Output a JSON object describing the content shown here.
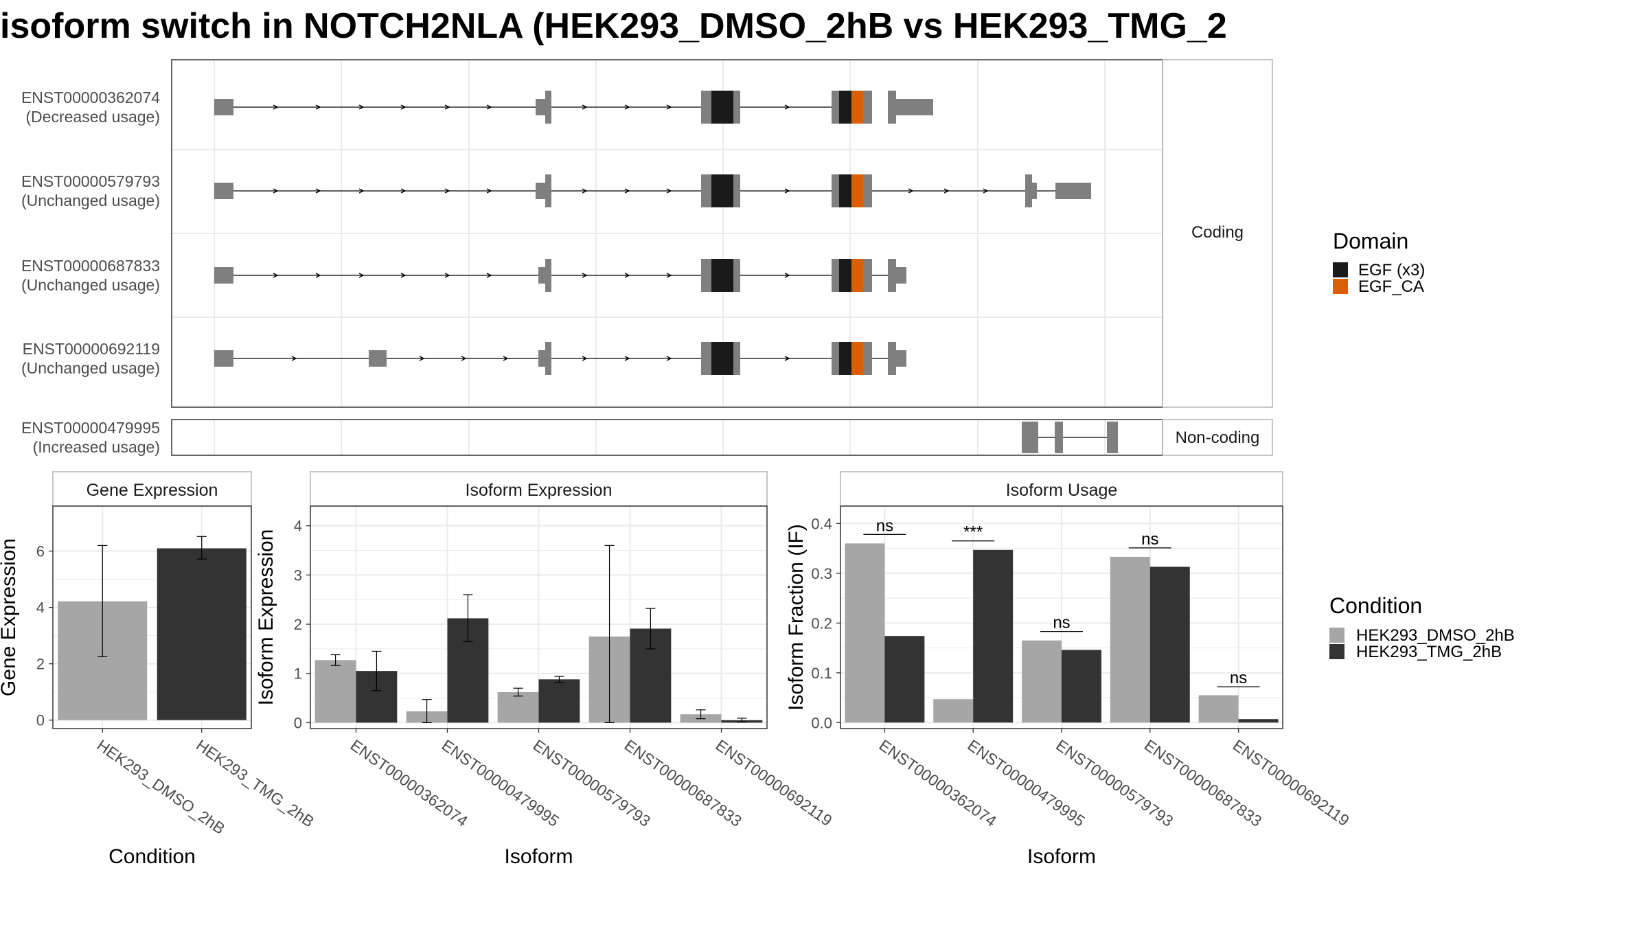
{
  "title": "isoform switch in NOTCH2NLA (HEK293_DMSO_2hB vs HEK293_TMG_2",
  "colors": {
    "exon": "#7f7f7f",
    "egf": "#1a1a1a",
    "egf_ca": "#d95f02",
    "dmso": "#a6a6a6",
    "tmg": "#333333",
    "grid": "#ebebeb",
    "frame": "#333333",
    "strip_border": "#b3b3b3"
  },
  "structure": {
    "facets": {
      "coding": "Coding",
      "noncoding": "Non-coding"
    },
    "isoforms": [
      {
        "id": "ENST00000362074",
        "usage": "(Decreased usage)",
        "coding": true
      },
      {
        "id": "ENST00000579793",
        "usage": "(Unchanged usage)",
        "coding": true
      },
      {
        "id": "ENST00000687833",
        "usage": "(Unchanged usage)",
        "coding": true
      },
      {
        "id": "ENST00000692119",
        "usage": "(Unchanged usage)",
        "coding": true
      },
      {
        "id": "ENST00000479995",
        "usage": "(Increased usage)",
        "coding": false
      }
    ],
    "legend": {
      "title": "Domain",
      "items": [
        {
          "label": "EGF (x3)",
          "color": "#1a1a1a"
        },
        {
          "label": "EGF_CA",
          "color": "#d95f02"
        }
      ]
    }
  },
  "chart_data": [
    {
      "type": "bar",
      "title": "Gene Expression",
      "xlabel": "Condition",
      "ylabel": "Gene Expression",
      "ylim": [
        -0.3,
        7.6
      ],
      "yticks": [
        0,
        2,
        4,
        6
      ],
      "categories": [
        "HEK293_DMSO_2hB",
        "HEK293_TMG_2hB"
      ],
      "values": [
        4.22,
        6.1
      ],
      "errors": [
        [
          2.25,
          6.2
        ],
        [
          5.72,
          6.52
        ]
      ]
    },
    {
      "type": "bar",
      "title": "Isoform Expression",
      "xlabel": "Isoform",
      "ylabel": "Isoform Expression",
      "ylim": [
        -0.12,
        4.4
      ],
      "yticks": [
        0,
        1,
        2,
        3,
        4
      ],
      "categories": [
        "ENST00000362074",
        "ENST00000479995",
        "ENST00000579793",
        "ENST00000687833",
        "ENST00000692119"
      ],
      "series": [
        {
          "name": "HEK293_DMSO_2hB",
          "values": [
            1.27,
            0.23,
            0.62,
            1.75,
            0.17
          ],
          "errors": [
            [
              1.16,
              1.38
            ],
            [
              0.0,
              0.47
            ],
            [
              0.54,
              0.7
            ],
            [
              0.0,
              3.6
            ],
            [
              0.08,
              0.26
            ]
          ]
        },
        {
          "name": "HEK293_TMG_2hB",
          "values": [
            1.05,
            2.12,
            0.88,
            1.91,
            0.05
          ],
          "errors": [
            [
              0.65,
              1.45
            ],
            [
              1.65,
              2.6
            ],
            [
              0.82,
              0.94
            ],
            [
              1.5,
              2.32
            ],
            [
              0.01,
              0.09
            ]
          ]
        }
      ]
    },
    {
      "type": "bar",
      "title": "Isoform Usage",
      "xlabel": "Isoform",
      "ylabel": "Isoform Fraction (IF)",
      "ylim": [
        -0.012,
        0.435
      ],
      "yticks": [
        0.0,
        0.1,
        0.2,
        0.3,
        0.4
      ],
      "categories": [
        "ENST00000362074",
        "ENST00000479995",
        "ENST00000579793",
        "ENST00000687833",
        "ENST00000692119"
      ],
      "series": [
        {
          "name": "HEK293_DMSO_2hB",
          "values": [
            0.36,
            0.047,
            0.165,
            0.333,
            0.055
          ]
        },
        {
          "name": "HEK293_TMG_2hB",
          "values": [
            0.174,
            0.347,
            0.146,
            0.313,
            0.007
          ]
        }
      ],
      "annotations": [
        "ns",
        "***",
        "ns",
        "ns",
        "ns"
      ],
      "annotation_y": [
        0.378,
        0.365,
        0.183,
        0.351,
        0.072
      ]
    }
  ],
  "condition_legend": {
    "title": "Condition",
    "items": [
      {
        "label": "HEK293_DMSO_2hB",
        "color": "#a6a6a6"
      },
      {
        "label": "HEK293_TMG_2hB",
        "color": "#333333"
      }
    ]
  }
}
